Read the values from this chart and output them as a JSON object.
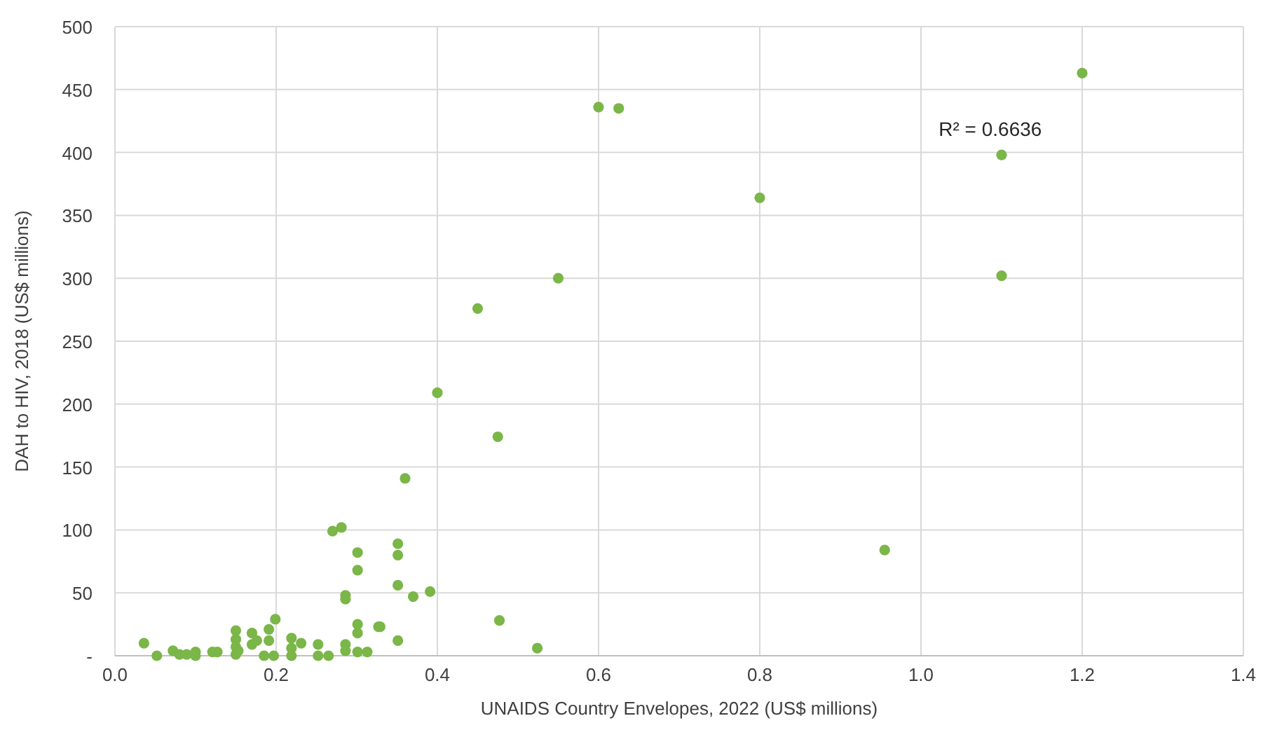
{
  "chart_data": {
    "type": "scatter",
    "xlabel": "UNAIDS Country Envelopes, 2022 (US$ millions)",
    "ylabel": "DAH to HIV, 2018 (US$ millions)",
    "annotations": [
      "R² = 0.6636"
    ],
    "xlim": [
      0,
      1.4
    ],
    "xticks": [
      {
        "value": 0,
        "label": "0.0"
      },
      0.2,
      0.4,
      0.6,
      0.8,
      {
        "value": 1,
        "label": "1.0"
      },
      1.2,
      1.4
    ],
    "ylim": [
      0,
      500
    ],
    "yticks": [
      {
        "value": 0,
        "label": "-"
      },
      50,
      100,
      150,
      200,
      250,
      300,
      350,
      400,
      450,
      500
    ],
    "grid": true,
    "marker": "circle",
    "series": [
      {
        "color": "#7ab648",
        "x": [
          0.036,
          0.052,
          0.072,
          0.08,
          0.089,
          0.1,
          0.1,
          0.121,
          0.127,
          0.15,
          0.15,
          0.15,
          0.15,
          0.153,
          0.17,
          0.17,
          0.176,
          0.191,
          0.191,
          0.199,
          0.185,
          0.197,
          0.219,
          0.219,
          0.219,
          0.231,
          0.252,
          0.252,
          0.265,
          0.27,
          0.281,
          0.286,
          0.286,
          0.286,
          0.286,
          0.301,
          0.301,
          0.301,
          0.301,
          0.301,
          0.313,
          0.327,
          0.329,
          0.351,
          0.351,
          0.351,
          0.351,
          0.37,
          0.391,
          0.477,
          0.524,
          0.36,
          0.4,
          0.475,
          0.45,
          0.55,
          0.6,
          0.625,
          0.8,
          0.955,
          1.1,
          1.1,
          1.2
        ],
        "values": [
          10,
          0,
          4,
          1,
          1,
          3,
          0,
          3,
          3,
          20,
          13,
          7,
          1,
          4,
          18,
          9,
          12,
          21,
          12,
          29,
          0,
          0,
          14,
          6,
          0,
          10,
          9,
          0,
          0,
          99,
          102,
          48,
          45,
          9,
          4,
          82,
          68,
          25,
          18,
          3,
          3,
          23,
          23,
          89,
          80,
          56,
          12,
          47,
          51,
          28,
          6,
          141,
          209,
          174,
          276,
          300,
          436,
          435,
          364,
          84,
          398,
          302,
          463
        ]
      }
    ]
  }
}
